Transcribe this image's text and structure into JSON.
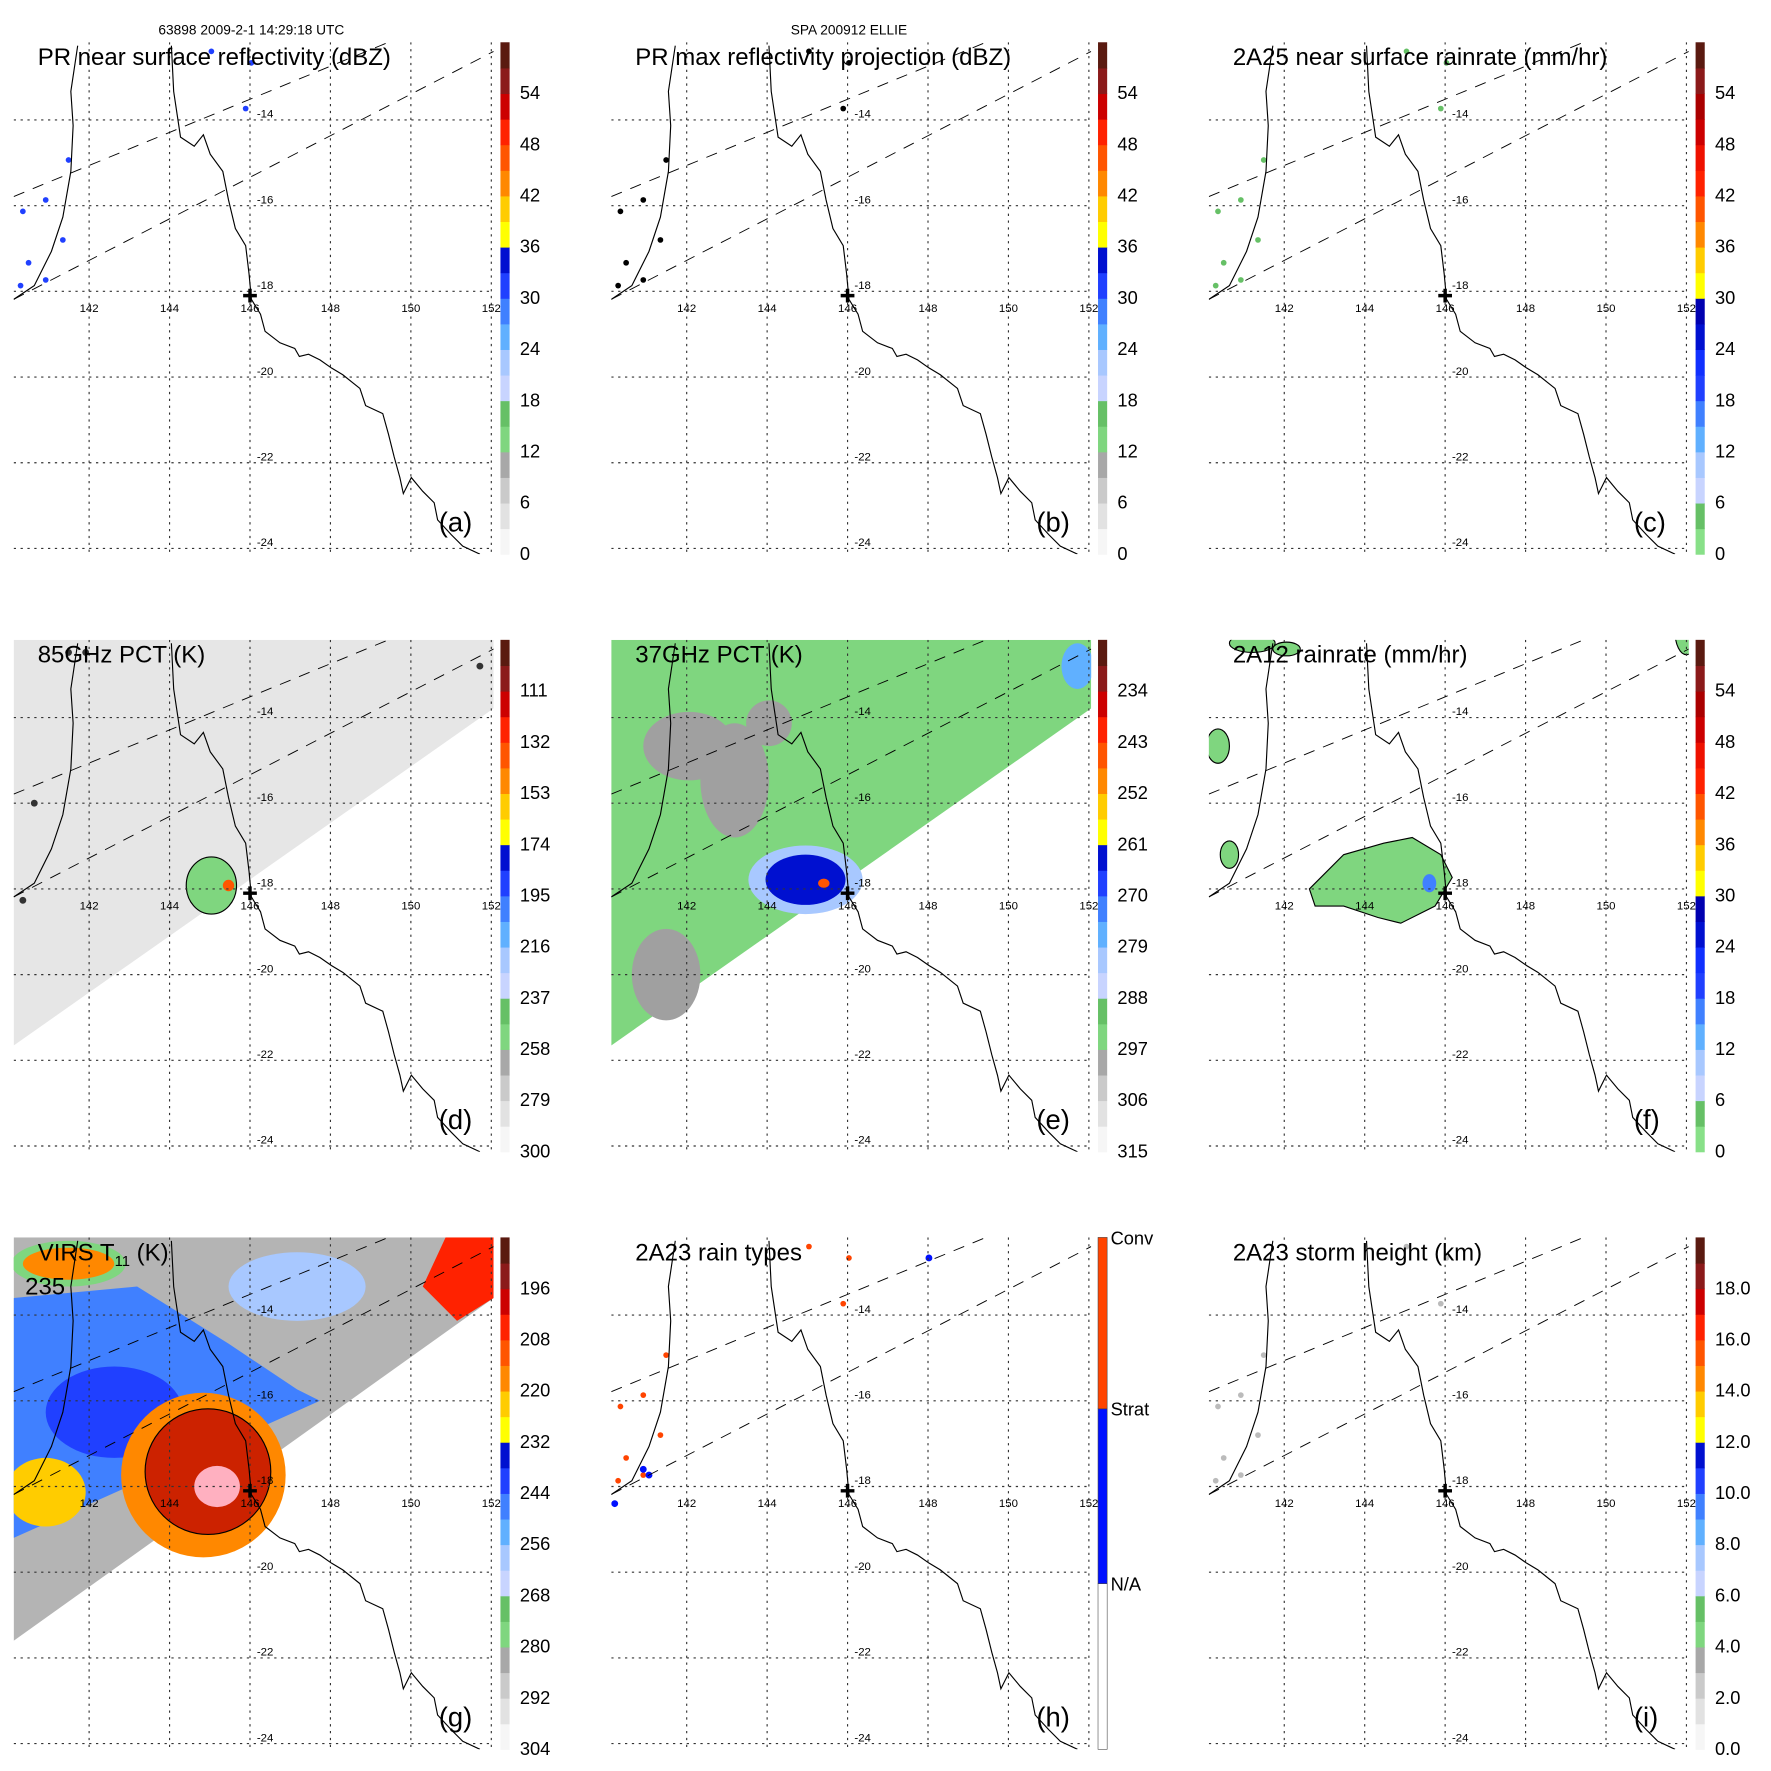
{
  "header": {
    "orbit_time": "63898 2009-2-1 14:29:18 UTC",
    "storm": "SPA 200912 ELLIE"
  },
  "colors": {
    "coast": "#000000",
    "grid": "#333333",
    "land_marker": "#000000"
  },
  "chart_data": [
    {
      "type": "heatmap",
      "panel": "a",
      "title": "PR near surface reflectivity (dBZ)",
      "letter": "(a)",
      "colorbar": {
        "labels": [
          "0",
          "6",
          "12",
          "18",
          "24",
          "30",
          "36",
          "42",
          "48",
          "54"
        ],
        "range": [
          0,
          60
        ],
        "colors": [
          "#f6f6f6",
          "#e2e2e2",
          "#cacaca",
          "#a8a8a8",
          "#7fd67f",
          "#66c066",
          "#c8d4ff",
          "#a8c8ff",
          "#60b0ff",
          "#4080ff",
          "#2040ff",
          "#0010d0",
          "#ffff00",
          "#ffcc00",
          "#ff8800",
          "#ff5500",
          "#ff2200",
          "#cc0000",
          "#8b1a1a",
          "#5a1a10"
        ]
      }
    },
    {
      "type": "heatmap",
      "panel": "b",
      "title": "PR max reflectivity projection (dBZ)",
      "letter": "(b)",
      "colorbar": {
        "labels": [
          "0",
          "6",
          "12",
          "18",
          "24",
          "30",
          "36",
          "42",
          "48",
          "54"
        ],
        "range": [
          0,
          60
        ],
        "colors": [
          "#f6f6f6",
          "#e2e2e2",
          "#cacaca",
          "#a8a8a8",
          "#7fd67f",
          "#66c066",
          "#c8d4ff",
          "#a8c8ff",
          "#60b0ff",
          "#4080ff",
          "#2040ff",
          "#0010d0",
          "#ffff00",
          "#ffcc00",
          "#ff8800",
          "#ff5500",
          "#ff2200",
          "#cc0000",
          "#8b1a1a",
          "#5a1a10"
        ]
      }
    },
    {
      "type": "heatmap",
      "panel": "c",
      "title": "2A25 near surface rainrate (mm/hr)",
      "letter": "(c)",
      "colorbar": {
        "labels": [
          "0",
          "6",
          "12",
          "18",
          "24",
          "30",
          "36",
          "42",
          "48",
          "54"
        ],
        "range": [
          0,
          60
        ],
        "colors": [
          "#88e088",
          "#66c066",
          "#c8d4ff",
          "#a8c8ff",
          "#60b0ff",
          "#4080ff",
          "#2040ff",
          "#1030ff",
          "#0010d0",
          "#0000b0",
          "#ffff00",
          "#ffcc00",
          "#ff8800",
          "#ff5500",
          "#ff2200",
          "#ee1100",
          "#cc0000",
          "#aa0000",
          "#8b1a1a",
          "#5a1a10"
        ]
      }
    },
    {
      "type": "heatmap",
      "panel": "d",
      "title": "85GHz PCT (K)",
      "letter": "(d)",
      "colorbar": {
        "labels": [
          "300",
          "279",
          "258",
          "237",
          "216",
          "195",
          "174",
          "153",
          "132",
          "111"
        ],
        "range": [
          300,
          90
        ],
        "colors": [
          "#f6f6f6",
          "#e2e2e2",
          "#cacaca",
          "#a8a8a8",
          "#7fd67f",
          "#66c066",
          "#c8d4ff",
          "#a8c8ff",
          "#60b0ff",
          "#4080ff",
          "#2040ff",
          "#0010d0",
          "#ffff00",
          "#ffcc00",
          "#ff8800",
          "#ff5500",
          "#ff2200",
          "#cc0000",
          "#8b1a1a",
          "#5a1a10"
        ]
      },
      "swath_fill": "#e6e6e6",
      "feature_fill": "#7fd67f"
    },
    {
      "type": "heatmap",
      "panel": "e",
      "title": "37GHz PCT (K)",
      "letter": "(e)",
      "colorbar": {
        "labels": [
          "315",
          "306",
          "297",
          "288",
          "279",
          "270",
          "261",
          "252",
          "243",
          "234"
        ],
        "range": [
          315,
          225
        ],
        "colors": [
          "#f6f6f6",
          "#e2e2e2",
          "#cacaca",
          "#a8a8a8",
          "#7fd67f",
          "#66c066",
          "#c8d4ff",
          "#a8c8ff",
          "#60b0ff",
          "#4080ff",
          "#2040ff",
          "#0010d0",
          "#ffff00",
          "#ffcc00",
          "#ff8800",
          "#ff5500",
          "#ff2200",
          "#cc0000",
          "#8b1a1a",
          "#5a1a10"
        ]
      },
      "swath_fill": "#7fd67f",
      "feature_fill": "#0010d0"
    },
    {
      "type": "heatmap",
      "panel": "f",
      "title": "2A12 rainrate (mm/hr)",
      "letter": "(f)",
      "colorbar": {
        "labels": [
          "0",
          "6",
          "12",
          "18",
          "24",
          "30",
          "36",
          "42",
          "48",
          "54"
        ],
        "range": [
          0,
          60
        ],
        "colors": [
          "#88e088",
          "#66c066",
          "#c8d4ff",
          "#a8c8ff",
          "#60b0ff",
          "#4080ff",
          "#2040ff",
          "#1030ff",
          "#0010d0",
          "#0000b0",
          "#ffff00",
          "#ffcc00",
          "#ff8800",
          "#ff5500",
          "#ff2200",
          "#ee1100",
          "#cc0000",
          "#aa0000",
          "#8b1a1a",
          "#5a1a10"
        ]
      },
      "feature_fill": "#7fd67f"
    },
    {
      "type": "heatmap",
      "panel": "g",
      "title": "VIRS T",
      "title_sub": "11",
      "title_suffix": " (K)",
      "min_label": "235",
      "letter": "(g)",
      "colorbar": {
        "labels": [
          "304",
          "292",
          "280",
          "268",
          "256",
          "244",
          "232",
          "220",
          "208",
          "196"
        ],
        "range": [
          304,
          184
        ],
        "colors": [
          "#f6f6f6",
          "#e2e2e2",
          "#cacaca",
          "#a8a8a8",
          "#7fd67f",
          "#66c066",
          "#c8d4ff",
          "#a8c8ff",
          "#60b0ff",
          "#4080ff",
          "#2040ff",
          "#0010d0",
          "#ffff00",
          "#ffcc00",
          "#ff8800",
          "#ff5500",
          "#ff2200",
          "#cc0000",
          "#8b1a1a",
          "#5a1a10"
        ]
      },
      "swath_fill": "#b4b4b4",
      "feature_fill": "#ff8800"
    },
    {
      "type": "heatmap",
      "panel": "h",
      "title": "2A23 rain types",
      "letter": "(h)",
      "colorbar": {
        "categories": [
          "N/A",
          "Strat",
          "Conv"
        ],
        "colors": [
          "#ffffff",
          "#0010ff",
          "#ff4400"
        ]
      }
    },
    {
      "type": "heatmap",
      "panel": "i",
      "title": "2A23 storm height (km)",
      "letter": "(i)",
      "colorbar": {
        "labels": [
          "0.0",
          "2.0",
          "4.0",
          "6.0",
          "8.0",
          "10.0",
          "12.0",
          "14.0",
          "16.0",
          "18.0"
        ],
        "range": [
          0,
          20
        ],
        "colors": [
          "#f6f6f6",
          "#e2e2e2",
          "#cacaca",
          "#a8a8a8",
          "#7fd67f",
          "#66c066",
          "#c8d4ff",
          "#a8c8ff",
          "#60b0ff",
          "#4080ff",
          "#2040ff",
          "#0010d0",
          "#ffff00",
          "#ffcc00",
          "#ff8800",
          "#ff5500",
          "#ff2200",
          "#cc0000",
          "#8b1a1a",
          "#5a1a10"
        ]
      }
    }
  ],
  "axes": {
    "lon_ticks": [
      "142",
      "144",
      "146",
      "148",
      "150",
      "152"
    ],
    "lon_values": [
      142,
      144,
      146,
      148,
      150,
      152
    ],
    "lat_ticks": [
      "-14",
      "-16",
      "-18",
      "-20",
      "-22",
      "-24"
    ],
    "lat_values": [
      -14,
      -16,
      -18,
      -20,
      -22,
      -24
    ],
    "storm_center": {
      "lon": 146.0,
      "lat": -18.1
    }
  }
}
